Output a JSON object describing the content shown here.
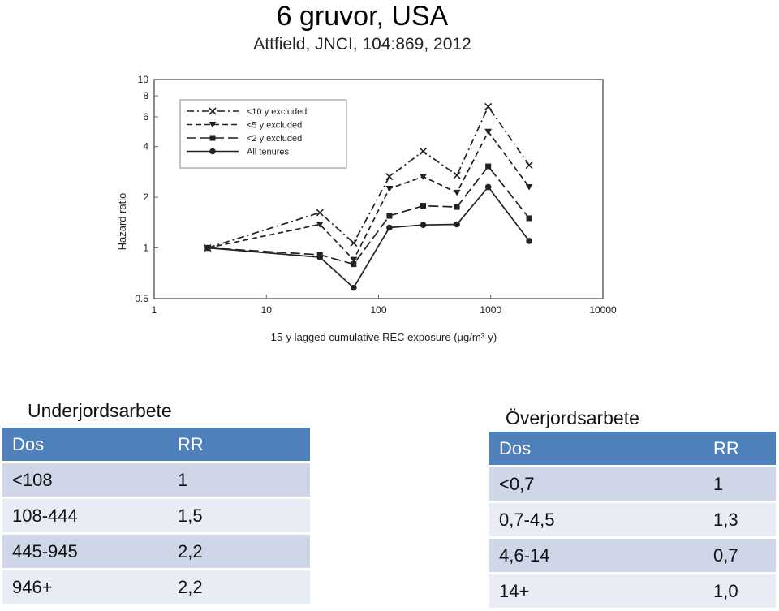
{
  "header": {
    "title": "6 gruvor, USA",
    "subtitle": "Attfield, JNCI, 104:869, 2012"
  },
  "chart_data": {
    "type": "line",
    "title": "",
    "xlabel": "15-y lagged cumulative REC exposure (µg/m³-y)",
    "ylabel": "Hazard ratio",
    "xscale": "log",
    "yscale": "log",
    "xlim": [
      1,
      10000
    ],
    "ylim": [
      0.5,
      10
    ],
    "x_ticks": [
      "1",
      "10",
      "100",
      "1000",
      "10000"
    ],
    "y_ticks": [
      "0.5",
      "1",
      "2",
      "4",
      "6",
      "8",
      "10"
    ],
    "legend_position": "top-left",
    "series": [
      {
        "name": "<10 y excluded",
        "style": "dashdot",
        "marker": "x",
        "x": [
          3,
          30,
          60,
          125,
          250,
          500,
          950,
          2200
        ],
        "y": [
          1.0,
          1.62,
          1.07,
          2.65,
          3.75,
          2.7,
          6.9,
          3.1
        ]
      },
      {
        "name": "<5 y excluded",
        "style": "dashed",
        "marker": "triangle",
        "x": [
          3,
          30,
          60,
          125,
          250,
          500,
          950,
          2200
        ],
        "y": [
          1.0,
          1.38,
          0.85,
          2.25,
          2.65,
          2.13,
          4.9,
          2.3
        ]
      },
      {
        "name": "<2 y excluded",
        "style": "longdash",
        "marker": "square",
        "x": [
          3,
          30,
          60,
          125,
          250,
          500,
          950,
          2200
        ],
        "y": [
          1.0,
          0.91,
          0.8,
          1.55,
          1.78,
          1.75,
          3.05,
          1.5
        ]
      },
      {
        "name": "All tenures",
        "style": "solid",
        "marker": "circle",
        "x": [
          3,
          30,
          60,
          125,
          250,
          500,
          950,
          2200
        ],
        "y": [
          1.0,
          0.88,
          0.58,
          1.32,
          1.37,
          1.38,
          2.3,
          1.1
        ]
      }
    ]
  },
  "underground": {
    "heading": "Underjordsarbete",
    "col_dose": "Dos",
    "col_rr": "RR",
    "rows": [
      {
        "dose": "<108",
        "rr": "1"
      },
      {
        "dose": "108-444",
        "rr": "1,5"
      },
      {
        "dose": "445-945",
        "rr": "2,2"
      },
      {
        "dose": "946+",
        "rr": "2,2"
      }
    ]
  },
  "surface": {
    "heading": "Överjordsarbete",
    "col_dose": "Dos",
    "col_rr": "RR",
    "rows": [
      {
        "dose": "<0,7",
        "rr": "1"
      },
      {
        "dose": "0,7-4,5",
        "rr": "1,3"
      },
      {
        "dose": "4,6-14",
        "rr": "0,7"
      },
      {
        "dose": "14+",
        "rr": "1,0"
      }
    ]
  }
}
